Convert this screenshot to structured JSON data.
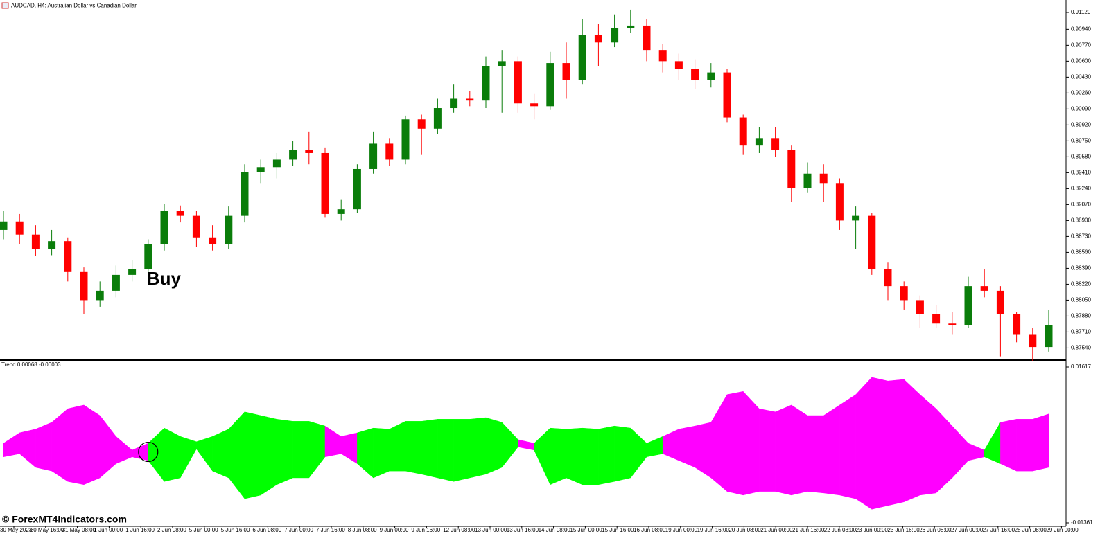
{
  "chart_data": [
    {
      "type": "candlestick",
      "title": "AUDCAD, H4:  Australian Dollar vs Canadian Dollar",
      "annotation": "Buy",
      "up_color": "#0a7d0a",
      "down_color": "#ff0000",
      "open": [
        0.888,
        0.8889,
        0.8875,
        0.886,
        0.8868,
        0.8835,
        0.8805,
        0.8815,
        0.8832,
        0.8838,
        0.8865,
        0.89,
        0.8895,
        0.8872,
        0.8865,
        0.8895,
        0.8942,
        0.8947,
        0.8955,
        0.8965,
        0.8962,
        0.8897,
        0.8902,
        0.8945,
        0.8972,
        0.8955,
        0.8998,
        0.8988,
        0.901,
        0.902,
        0.9018,
        0.9055,
        0.906,
        0.9015,
        0.9012,
        0.9058,
        0.904,
        0.9088,
        0.908,
        0.9095,
        0.9098,
        0.9072,
        0.906,
        0.9052,
        0.904,
        0.9048,
        0.9,
        0.897,
        0.8978,
        0.8965,
        0.8925,
        0.894,
        0.893,
        0.889,
        0.8895,
        0.8838,
        0.882,
        0.8805,
        0.879,
        0.878,
        0.8778,
        0.882,
        0.8815,
        0.879,
        0.8768,
        0.8755
      ],
      "high": [
        0.89,
        0.8897,
        0.8885,
        0.888,
        0.8872,
        0.884,
        0.8825,
        0.8842,
        0.8848,
        0.887,
        0.8908,
        0.8906,
        0.89,
        0.8885,
        0.8905,
        0.895,
        0.8955,
        0.8962,
        0.8975,
        0.8985,
        0.8968,
        0.8912,
        0.895,
        0.8985,
        0.8978,
        0.9002,
        0.9003,
        0.902,
        0.9035,
        0.9028,
        0.9065,
        0.9072,
        0.9065,
        0.9025,
        0.907,
        0.908,
        0.9105,
        0.91,
        0.911,
        0.9115,
        0.9105,
        0.9078,
        0.9068,
        0.9062,
        0.9058,
        0.9052,
        0.9003,
        0.899,
        0.899,
        0.897,
        0.8952,
        0.895,
        0.8935,
        0.8905,
        0.8898,
        0.8845,
        0.8825,
        0.881,
        0.88,
        0.8792,
        0.883,
        0.8838,
        0.882,
        0.8792,
        0.8775,
        0.8795
      ],
      "low": [
        0.887,
        0.8865,
        0.8852,
        0.8853,
        0.8825,
        0.879,
        0.8798,
        0.8808,
        0.8825,
        0.883,
        0.8858,
        0.8888,
        0.8862,
        0.8858,
        0.886,
        0.8888,
        0.893,
        0.8935,
        0.8948,
        0.895,
        0.8893,
        0.889,
        0.8898,
        0.894,
        0.8948,
        0.895,
        0.896,
        0.8982,
        0.9005,
        0.9012,
        0.901,
        0.9005,
        0.9005,
        0.8998,
        0.9008,
        0.902,
        0.9035,
        0.9055,
        0.9075,
        0.909,
        0.906,
        0.9048,
        0.904,
        0.903,
        0.9032,
        0.8995,
        0.896,
        0.8962,
        0.8958,
        0.891,
        0.892,
        0.891,
        0.888,
        0.886,
        0.8832,
        0.8805,
        0.8795,
        0.8775,
        0.8775,
        0.8768,
        0.8775,
        0.8808,
        0.8745,
        0.876,
        0.874,
        0.875
      ],
      "close": [
        0.8889,
        0.8875,
        0.886,
        0.8868,
        0.8835,
        0.8805,
        0.8815,
        0.8832,
        0.8838,
        0.8865,
        0.89,
        0.8895,
        0.8872,
        0.8865,
        0.8895,
        0.8942,
        0.8947,
        0.8955,
        0.8965,
        0.8962,
        0.8897,
        0.8902,
        0.8945,
        0.8972,
        0.8955,
        0.8998,
        0.8988,
        0.901,
        0.902,
        0.9018,
        0.9055,
        0.906,
        0.9015,
        0.9012,
        0.9058,
        0.904,
        0.9088,
        0.908,
        0.9095,
        0.9098,
        0.9072,
        0.906,
        0.9052,
        0.904,
        0.9048,
        0.9,
        0.897,
        0.8978,
        0.8965,
        0.8925,
        0.894,
        0.893,
        0.889,
        0.8895,
        0.8838,
        0.882,
        0.8805,
        0.879,
        0.878,
        0.8778,
        0.882,
        0.8815,
        0.879,
        0.8768,
        0.8755,
        0.8778
      ],
      "ylim": [
        0.87425,
        0.91253
      ],
      "yticks": [
        {
          "value": 0.9112,
          "label": "0.91120"
        },
        {
          "value": 0.9094,
          "label": "0.90940"
        },
        {
          "value": 0.9077,
          "label": "0.90770"
        },
        {
          "value": 0.906,
          "label": "0.90600"
        },
        {
          "value": 0.9043,
          "label": "0.90430"
        },
        {
          "value": 0.9026,
          "label": "0.90260"
        },
        {
          "value": 0.9009,
          "label": "0.90090"
        },
        {
          "value": 0.8992,
          "label": "0.89920"
        },
        {
          "value": 0.8975,
          "label": "0.89750"
        },
        {
          "value": 0.8958,
          "label": "0.89580"
        },
        {
          "value": 0.8941,
          "label": "0.89410"
        },
        {
          "value": 0.8924,
          "label": "0.89240"
        },
        {
          "value": 0.8907,
          "label": "0.89070"
        },
        {
          "value": 0.889,
          "label": "0.88900"
        },
        {
          "value": 0.8873,
          "label": "0.88730"
        },
        {
          "value": 0.8856,
          "label": "0.88560"
        },
        {
          "value": 0.8839,
          "label": "0.88390"
        },
        {
          "value": 0.8822,
          "label": "0.88220"
        },
        {
          "value": 0.8805,
          "label": "0.88050"
        },
        {
          "value": 0.8788,
          "label": "0.87880"
        },
        {
          "value": 0.8771,
          "label": "0.87710"
        },
        {
          "value": 0.8754,
          "label": "0.87540"
        }
      ],
      "time_labels": [
        "30 May 2023",
        "30 May 16:00",
        "31 May 08:00",
        "1 Jun 00:00",
        "1 Jun 16:00",
        "2 Jun 08:00",
        "5 Jun 00:00",
        "5 Jun 16:00",
        "6 Jun 08:00",
        "7 Jun 00:00",
        "7 Jun 16:00",
        "8 Jun 08:00",
        "9 Jun 00:00",
        "9 Jun 16:00",
        "12 Jun 08:00",
        "13 Jun 00:00",
        "13 Jun 16:00",
        "14 Jun 08:00",
        "15 Jun 00:00",
        "15 Jun 16:00",
        "16 Jun 08:00",
        "19 Jun 00:00",
        "19 Jun 16:00",
        "20 Jun 08:00",
        "21 Jun 00:00",
        "21 Jun 16:00",
        "22 Jun 08:00",
        "23 Jun 00:00",
        "23 Jun 16:00",
        "26 Jun 08:00",
        "27 Jun 00:00",
        "27 Jun 16:00",
        "28 Jun 08:00",
        "29 Jun 00:00"
      ]
    },
    {
      "type": "band",
      "title": "Trend 0.00068 -0.00003",
      "upper": [
        0.0016,
        0.0036,
        0.0043,
        0.0056,
        0.0082,
        0.0089,
        0.0069,
        0.0029,
        0.0003,
        0.0016,
        0.0045,
        0.0029,
        0.0019,
        0.0029,
        0.0043,
        0.0076,
        0.0069,
        0.0062,
        0.0058,
        0.0058,
        0.0049,
        0.0029,
        0.0036,
        0.0045,
        0.0043,
        0.0058,
        0.0058,
        0.0062,
        0.0062,
        0.0062,
        0.0065,
        0.0056,
        0.0023,
        0.0016,
        0.0045,
        0.0043,
        0.0045,
        0.0043,
        0.0049,
        0.0045,
        0.0016,
        0.0029,
        0.0043,
        0.0049,
        0.0056,
        0.0109,
        0.0115,
        0.0082,
        0.0076,
        0.0089,
        0.0069,
        0.0069,
        0.0089,
        0.0109,
        0.0142,
        0.0135,
        0.0138,
        0.0109,
        0.0082,
        0.0049,
        0.0016,
        0.0003,
        0.0056,
        0.0062,
        0.0062,
        0.0072
      ],
      "lower": [
        -0.001,
        -0.0004,
        -0.003,
        -0.0037,
        -0.0057,
        -0.0063,
        -0.005,
        -0.0023,
        -0.001,
        -0.0017,
        -0.0057,
        -0.005,
        0.0005,
        -0.0037,
        -0.005,
        -0.009,
        -0.0083,
        -0.0063,
        -0.005,
        -0.005,
        -0.001,
        -0.0004,
        -0.0023,
        -0.005,
        -0.0037,
        -0.0037,
        -0.0043,
        -0.005,
        -0.0057,
        -0.005,
        -0.0043,
        -0.003,
        0.0009,
        0.0003,
        -0.0063,
        -0.005,
        -0.0063,
        -0.0063,
        -0.0057,
        -0.005,
        -0.001,
        -0.0004,
        -0.0017,
        -0.003,
        -0.005,
        -0.0076,
        -0.0083,
        -0.0076,
        -0.0076,
        -0.0083,
        -0.0076,
        -0.0079,
        -0.0083,
        -0.009,
        -0.011,
        -0.0103,
        -0.0096,
        -0.0083,
        -0.0079,
        -0.005,
        -0.0017,
        -0.001,
        -0.0023,
        -0.0037,
        -0.0037,
        -0.003
      ],
      "colors": [
        "#ff00ff",
        "#ff00ff",
        "#ff00ff",
        "#ff00ff",
        "#ff00ff",
        "#ff00ff",
        "#ff00ff",
        "#ff00ff",
        "#ff00ff",
        "#00ff00",
        "#00ff00",
        "#00ff00",
        "#00ff00",
        "#00ff00",
        "#00ff00",
        "#00ff00",
        "#00ff00",
        "#00ff00",
        "#00ff00",
        "#00ff00",
        "#ff00ff",
        "#ff00ff",
        "#00ff00",
        "#00ff00",
        "#00ff00",
        "#00ff00",
        "#00ff00",
        "#00ff00",
        "#00ff00",
        "#00ff00",
        "#00ff00",
        "#00ff00",
        "#ff00ff",
        "#00ff00",
        "#00ff00",
        "#00ff00",
        "#00ff00",
        "#00ff00",
        "#00ff00",
        "#00ff00",
        "#00ff00",
        "#ff00ff",
        "#ff00ff",
        "#ff00ff",
        "#ff00ff",
        "#ff00ff",
        "#ff00ff",
        "#ff00ff",
        "#ff00ff",
        "#ff00ff",
        "#ff00ff",
        "#ff00ff",
        "#ff00ff",
        "#ff00ff",
        "#ff00ff",
        "#ff00ff",
        "#ff00ff",
        "#ff00ff",
        "#ff00ff",
        "#ff00ff",
        "#ff00ff",
        "#00ff00",
        "#ff00ff",
        "#ff00ff",
        "#ff00ff",
        "#ff00ff"
      ],
      "ylim": [
        -0.01361,
        0.01617
      ],
      "yticks": [
        0.01617,
        -0.01361
      ]
    }
  ],
  "watermark": "© ForexMT4Indicators.com"
}
